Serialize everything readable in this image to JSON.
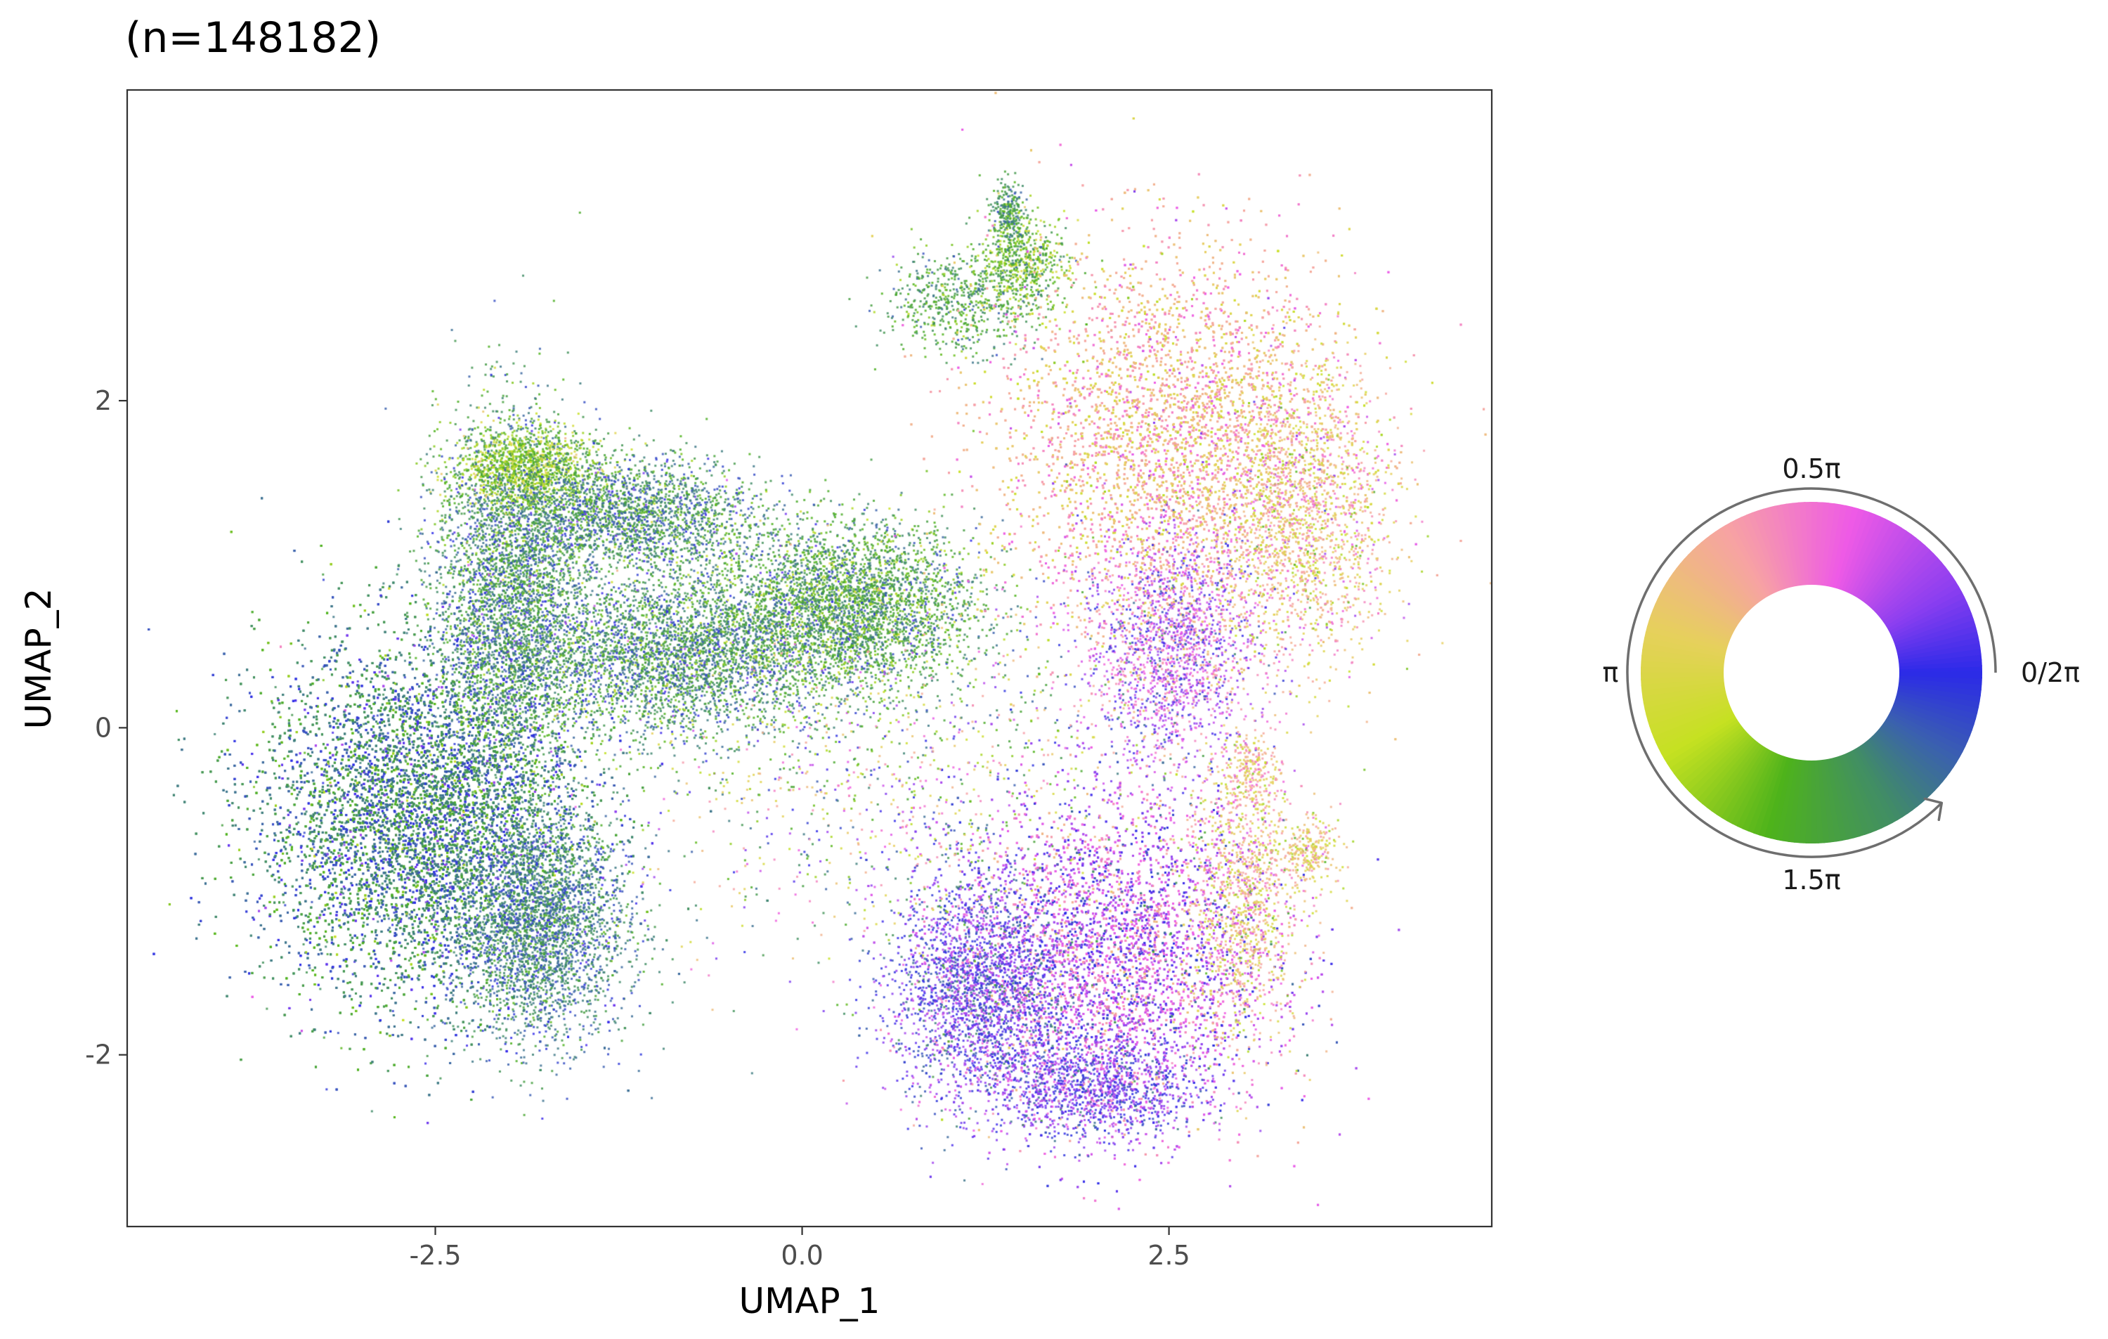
{
  "chart_data": {
    "type": "scatter",
    "title": "(n=148182)",
    "xlabel": "UMAP_1",
    "ylabel": "UMAP_2",
    "xlim": [
      -4.6,
      4.7
    ],
    "ylim": [
      -3.05,
      3.9
    ],
    "x_ticks": [
      {
        "value": -2.5,
        "label": "-2.5"
      },
      {
        "value": 0.0,
        "label": "0.0"
      },
      {
        "value": 2.5,
        "label": "2.5"
      }
    ],
    "y_ticks": [
      {
        "value": -2,
        "label": "-2"
      },
      {
        "value": 0,
        "label": "0"
      },
      {
        "value": 2,
        "label": "2"
      }
    ],
    "grid": false,
    "point_count": 148182,
    "color_encoding": "cell-cycle phase angle (0 to 2π) mapped to a circular hue wheel",
    "clusters": [
      {
        "name": "left-blob",
        "cx": -2.6,
        "cy": -0.55,
        "sx": 0.55,
        "sy": 0.55,
        "weight": 0.26,
        "hue_center": 1.7,
        "hue_spread": 0.2
      },
      {
        "name": "left-bottom-lobe",
        "cx": -1.8,
        "cy": -1.2,
        "sx": 0.3,
        "sy": 0.35,
        "weight": 0.05,
        "hue_center": 1.72,
        "hue_spread": 0.15
      },
      {
        "name": "left-upper-arm",
        "cx": -2.0,
        "cy": 0.8,
        "sx": 0.25,
        "sy": 0.55,
        "weight": 0.06,
        "hue_center": 1.65,
        "hue_spread": 0.2
      },
      {
        "name": "top-left-cap",
        "cx": -1.9,
        "cy": 1.6,
        "sx": 0.25,
        "sy": 0.12,
        "weight": 0.02,
        "hue_center": 1.3,
        "hue_spread": 0.2
      },
      {
        "name": "upper-band",
        "cx": -1.2,
        "cy": 1.3,
        "sx": 0.45,
        "sy": 0.18,
        "weight": 0.04,
        "hue_center": 1.65,
        "hue_spread": 0.2
      },
      {
        "name": "central-band-left",
        "cx": -0.9,
        "cy": 0.45,
        "sx": 0.55,
        "sy": 0.25,
        "weight": 0.06,
        "hue_center": 1.65,
        "hue_spread": 0.2
      },
      {
        "name": "central-band-right",
        "cx": 0.3,
        "cy": 0.75,
        "sx": 0.45,
        "sy": 0.25,
        "weight": 0.06,
        "hue_center": 1.55,
        "hue_spread": 0.2
      },
      {
        "name": "top-arc-left",
        "cx": 1.05,
        "cy": 2.6,
        "sx": 0.25,
        "sy": 0.15,
        "weight": 0.01,
        "hue_center": 1.55,
        "hue_spread": 0.15
      },
      {
        "name": "top-arc-right",
        "cx": 1.5,
        "cy": 2.85,
        "sx": 0.15,
        "sy": 0.15,
        "weight": 0.01,
        "hue_center": 1.4,
        "hue_spread": 0.2
      },
      {
        "name": "top-arc-tip",
        "cx": 1.4,
        "cy": 3.15,
        "sx": 0.05,
        "sy": 0.1,
        "weight": 0.004,
        "hue_center": 1.6,
        "hue_spread": 0.15
      },
      {
        "name": "right-upper",
        "cx": 2.5,
        "cy": 1.75,
        "sx": 0.6,
        "sy": 0.6,
        "weight": 0.12,
        "hue_center": 0.75,
        "hue_spread": 0.2
      },
      {
        "name": "right-upper-edge",
        "cx": 3.4,
        "cy": 1.3,
        "sx": 0.3,
        "sy": 0.45,
        "weight": 0.03,
        "hue_center": 0.8,
        "hue_spread": 0.25
      },
      {
        "name": "right-middle",
        "cx": 2.5,
        "cy": 0.5,
        "sx": 0.3,
        "sy": 0.35,
        "weight": 0.03,
        "hue_center": 0.3,
        "hue_spread": 0.25
      },
      {
        "name": "right-lower",
        "cx": 2.1,
        "cy": -1.4,
        "sx": 0.55,
        "sy": 0.5,
        "weight": 0.12,
        "hue_center": 0.3,
        "hue_spread": 0.25
      },
      {
        "name": "right-lower-left",
        "cx": 1.2,
        "cy": -1.6,
        "sx": 0.3,
        "sy": 0.35,
        "weight": 0.04,
        "hue_center": 0.05,
        "hue_spread": 0.2
      },
      {
        "name": "right-lower-bottom",
        "cx": 2.0,
        "cy": -2.2,
        "sx": 0.35,
        "sy": 0.15,
        "weight": 0.02,
        "hue_center": 0.1,
        "hue_spread": 0.2
      },
      {
        "name": "right-lower-edge",
        "cx": 3.0,
        "cy": -1.0,
        "sx": 0.2,
        "sy": 0.45,
        "weight": 0.02,
        "hue_center": 0.8,
        "hue_spread": 0.25
      },
      {
        "name": "far-right-blob",
        "cx": 3.45,
        "cy": -0.75,
        "sx": 0.1,
        "sy": 0.1,
        "weight": 0.004,
        "hue_center": 0.9,
        "hue_spread": 0.2
      },
      {
        "name": "pink-spot",
        "cx": 3.05,
        "cy": -0.25,
        "sx": 0.08,
        "sy": 0.1,
        "weight": 0.003,
        "hue_center": 0.8,
        "hue_spread": 0.2
      },
      {
        "name": "central-scatter",
        "cx": 0.6,
        "cy": -0.3,
        "sx": 0.9,
        "sy": 0.6,
        "weight": 0.02,
        "hue_center": 1.2,
        "hue_spread": 0.6
      }
    ]
  },
  "phase_wheel": {
    "labels": [
      {
        "angle": "0.5π",
        "text": "0.5π"
      },
      {
        "angle": "π",
        "text": "π"
      },
      {
        "angle": "1.5π",
        "text": "1.5π"
      },
      {
        "angle": "0/2π",
        "text": "0/2π"
      }
    ],
    "colors": [
      {
        "angle_deg": 0,
        "color": "#2b2ae8"
      },
      {
        "angle_deg": 30,
        "color": "#8a3ef0"
      },
      {
        "angle_deg": 75,
        "color": "#ee5ae6"
      },
      {
        "angle_deg": 120,
        "color": "#f7a2a4"
      },
      {
        "angle_deg": 165,
        "color": "#e6d05c"
      },
      {
        "angle_deg": 210,
        "color": "#c5e121"
      },
      {
        "angle_deg": 255,
        "color": "#4eb31b"
      },
      {
        "angle_deg": 300,
        "color": "#418d66"
      },
      {
        "angle_deg": 330,
        "color": "#3a5fb0"
      },
      {
        "angle_deg": 360,
        "color": "#2b2ae8"
      }
    ],
    "direction": "counterclockwise arrow from 0 to 2π"
  }
}
